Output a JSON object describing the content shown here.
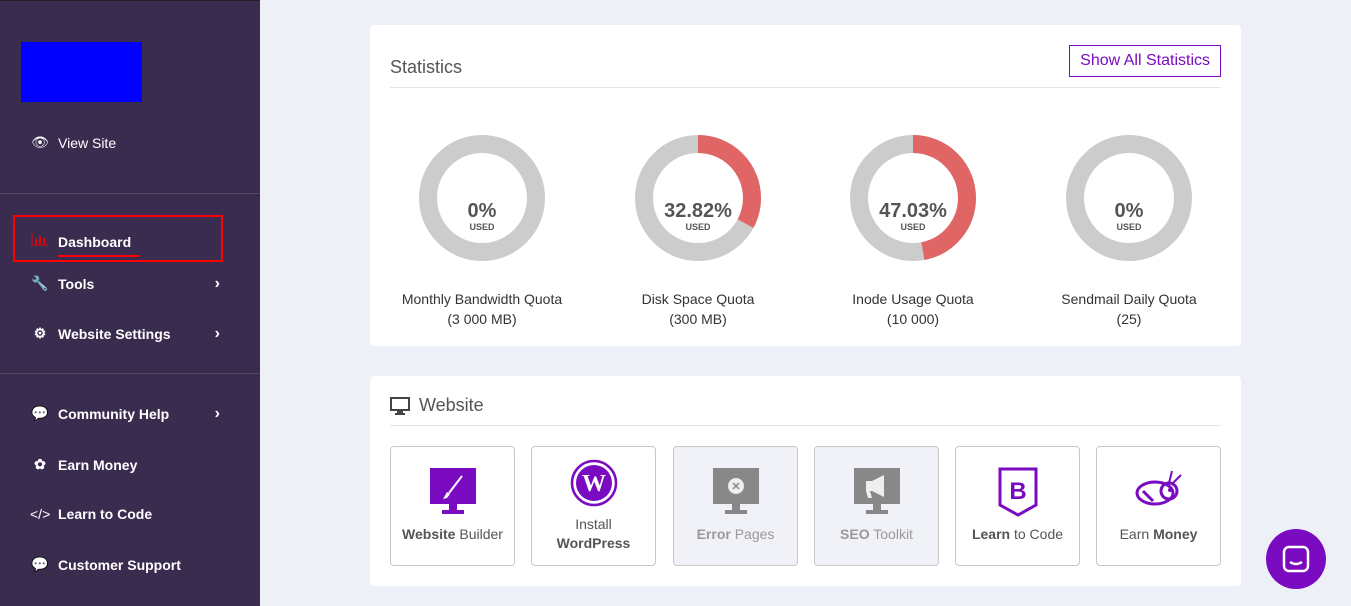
{
  "sidebar": {
    "view_site": "View Site",
    "items": [
      {
        "label": "Dashboard",
        "icon": "bar-chart-icon"
      },
      {
        "label": "Tools",
        "icon": "wrench-icon"
      },
      {
        "label": "Website Settings",
        "icon": "gear-icon"
      },
      {
        "label": "Community Help",
        "icon": "comments-icon"
      },
      {
        "label": "Earn Money",
        "icon": "money-icon"
      },
      {
        "label": "Learn to Code",
        "icon": "code-icon"
      },
      {
        "label": "Customer Support",
        "icon": "chat-bubble-icon"
      }
    ]
  },
  "statistics": {
    "title": "Statistics",
    "show_all": "Show All Statistics",
    "used_label": "USED",
    "gauges": [
      {
        "pct_text": "0%",
        "value": 0,
        "name": "Monthly Bandwidth Quota",
        "limit": "(3 000 MB)"
      },
      {
        "pct_text": "32.82%",
        "value": 32.82,
        "name": "Disk Space Quota",
        "limit": "(300 MB)"
      },
      {
        "pct_text": "47.03%",
        "value": 47.03,
        "name": "Inode Usage Quota",
        "limit": "(10 000)"
      },
      {
        "pct_text": "0%",
        "value": 0,
        "name": "Sendmail Daily Quota",
        "limit": "(25)"
      }
    ],
    "colors": {
      "used": "#e06666",
      "free": "#cccccc"
    }
  },
  "website": {
    "title": "Website",
    "tiles": [
      {
        "bold": "Website",
        "rest": " Builder"
      },
      {
        "pre": "Install",
        "bold": "WordPress"
      },
      {
        "bold": "Error",
        "rest": " Pages"
      },
      {
        "bold": "SEO",
        "rest": " Toolkit"
      },
      {
        "bold": "Learn",
        "rest": " to Code"
      },
      {
        "pre2": "Earn ",
        "bold": "Money"
      }
    ]
  }
}
